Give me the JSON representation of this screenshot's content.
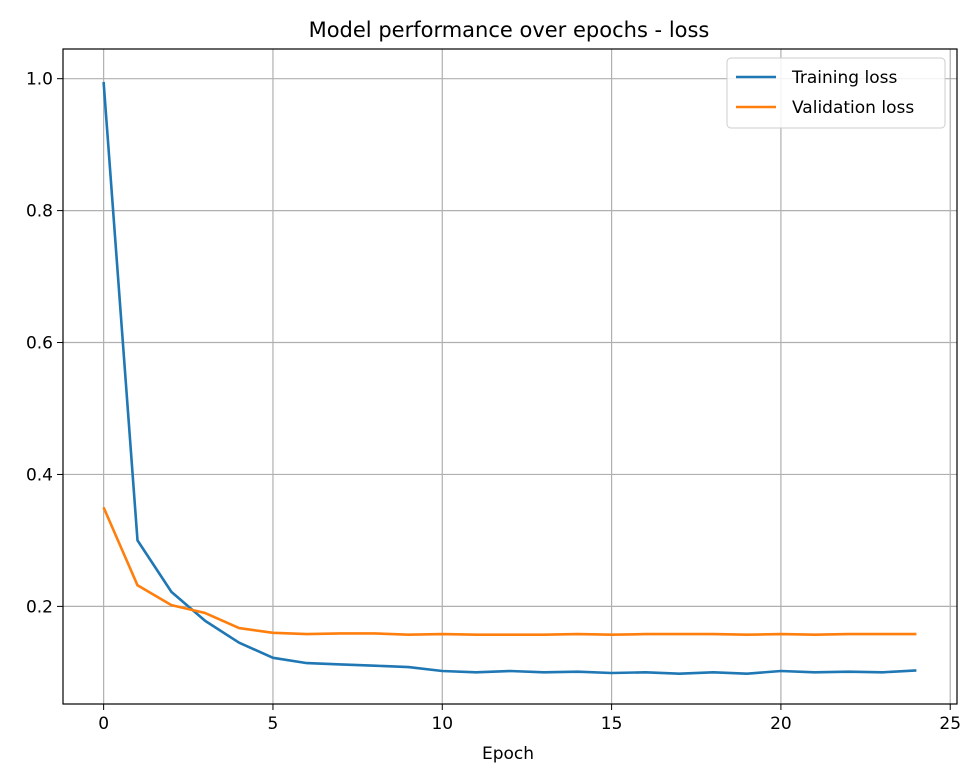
{
  "chart_data": {
    "type": "line",
    "title": "Model performance over epochs - loss",
    "xlabel": "Epoch",
    "ylabel": "",
    "xlim": [
      -1.2,
      25.2
    ],
    "ylim": [
      0.052,
      1.045
    ],
    "xticks": [
      0,
      5,
      10,
      15,
      20,
      25
    ],
    "yticks": [
      0.2,
      0.4,
      0.6,
      0.8,
      1.0
    ],
    "ytick_labels": [
      "0.2",
      "0.4",
      "0.6",
      "0.8",
      "1.0"
    ],
    "grid": true,
    "legend_position": "top-right",
    "x": [
      0,
      1,
      2,
      3,
      4,
      5,
      6,
      7,
      8,
      9,
      10,
      11,
      12,
      13,
      14,
      15,
      16,
      17,
      18,
      19,
      20,
      21,
      22,
      23,
      24
    ],
    "series": [
      {
        "name": "Training loss",
        "color": "#1f77b4",
        "values": [
          0.995,
          0.3,
          0.222,
          0.178,
          0.145,
          0.122,
          0.114,
          0.112,
          0.11,
          0.108,
          0.102,
          0.1,
          0.102,
          0.1,
          0.101,
          0.099,
          0.1,
          0.098,
          0.1,
          0.098,
          0.102,
          0.1,
          0.101,
          0.1,
          0.103
        ]
      },
      {
        "name": "Validation loss",
        "color": "#ff7f0e",
        "values": [
          0.35,
          0.232,
          0.202,
          0.19,
          0.167,
          0.16,
          0.158,
          0.159,
          0.159,
          0.157,
          0.158,
          0.157,
          0.157,
          0.157,
          0.158,
          0.157,
          0.158,
          0.158,
          0.158,
          0.157,
          0.158,
          0.157,
          0.158,
          0.158,
          0.158
        ]
      }
    ]
  }
}
